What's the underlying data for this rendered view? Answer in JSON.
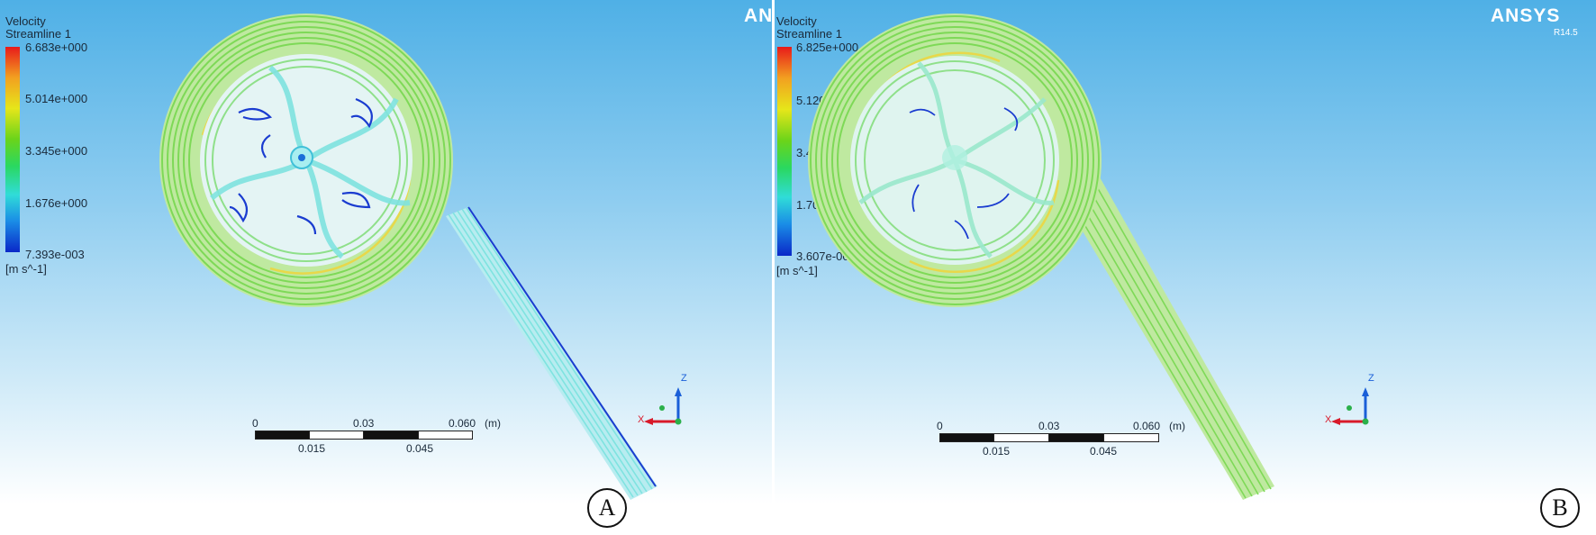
{
  "panels": [
    {
      "id": "A",
      "legend_title": "Velocity",
      "legend_subtitle": "Streamline 1",
      "ticks": [
        "6.683e+000",
        "5.014e+000",
        "3.345e+000",
        "1.676e+000",
        "7.393e-003"
      ],
      "unit": "[m s^-1]",
      "logo": "AN",
      "scale_top_labels": [
        "0",
        "0.03",
        "0.060",
        "(m)"
      ],
      "scale_bottom_labels": [
        "0.015",
        "0.045"
      ],
      "axis_labels": {
        "z": "Z",
        "x": "X"
      },
      "panel_label": "A"
    },
    {
      "id": "B",
      "legend_title": "Velocity",
      "legend_subtitle": "Streamline 1",
      "ticks": [
        "6.825e+000",
        "5.120e+000",
        "3.414e+000",
        "1.709e+000",
        "3.607e-003"
      ],
      "unit": "[m s^-1]",
      "logo": "ANSYS",
      "release": "R14.5",
      "scale_top_labels": [
        "0",
        "0.03",
        "0.060",
        "(m)"
      ],
      "scale_bottom_labels": [
        "0.015",
        "0.045"
      ],
      "axis_labels": {
        "z": "Z",
        "x": "X"
      },
      "panel_label": "B"
    }
  ],
  "colors": {
    "streamline_green": "#7ed957",
    "streamline_cyan": "#7fe3e0",
    "streamline_yellow": "#e8d84a",
    "vortex_blue": "#1a3cd0",
    "axis_z": "#1a5fd8",
    "axis_x": "#d81a2a",
    "axis_origin": "#2ab04a"
  }
}
